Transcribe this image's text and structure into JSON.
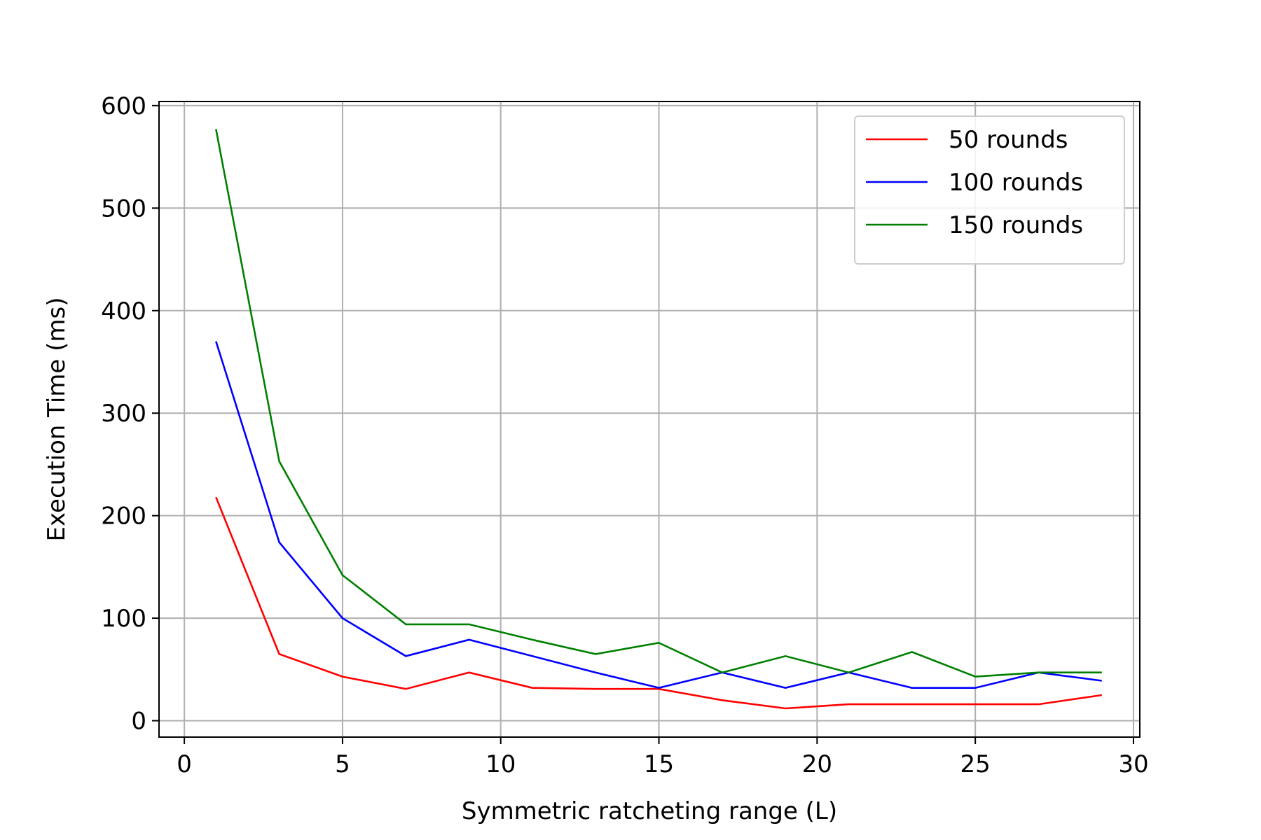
{
  "chart_data": {
    "type": "line",
    "title": "",
    "xlabel": "Symmetric ratcheting range (L)",
    "ylabel": "Execution Time (ms)",
    "xlim": [
      -0.8,
      30.2
    ],
    "ylim": [
      -16,
      604
    ],
    "xticks": [
      0,
      5,
      10,
      15,
      20,
      25,
      30
    ],
    "yticks": [
      0,
      100,
      200,
      300,
      400,
      500,
      600
    ],
    "grid": true,
    "legend_position": "top-right",
    "x": [
      1,
      3,
      5,
      7,
      9,
      11,
      13,
      15,
      17,
      19,
      21,
      23,
      25,
      27,
      29
    ],
    "series": [
      {
        "name": "50 rounds",
        "color": "#ff0000",
        "values": [
          218,
          65,
          43,
          31,
          47,
          32,
          31,
          31,
          20,
          12,
          16,
          16,
          16,
          16,
          25
        ]
      },
      {
        "name": "100 rounds",
        "color": "#0000ff",
        "values": [
          370,
          174,
          100,
          63,
          79,
          63,
          47,
          32,
          47,
          32,
          47,
          32,
          32,
          47,
          39
        ]
      },
      {
        "name": "150 rounds",
        "color": "#008000",
        "values": [
          577,
          253,
          142,
          94,
          94,
          79,
          65,
          76,
          47,
          63,
          47,
          67,
          43,
          47,
          47
        ]
      }
    ]
  }
}
